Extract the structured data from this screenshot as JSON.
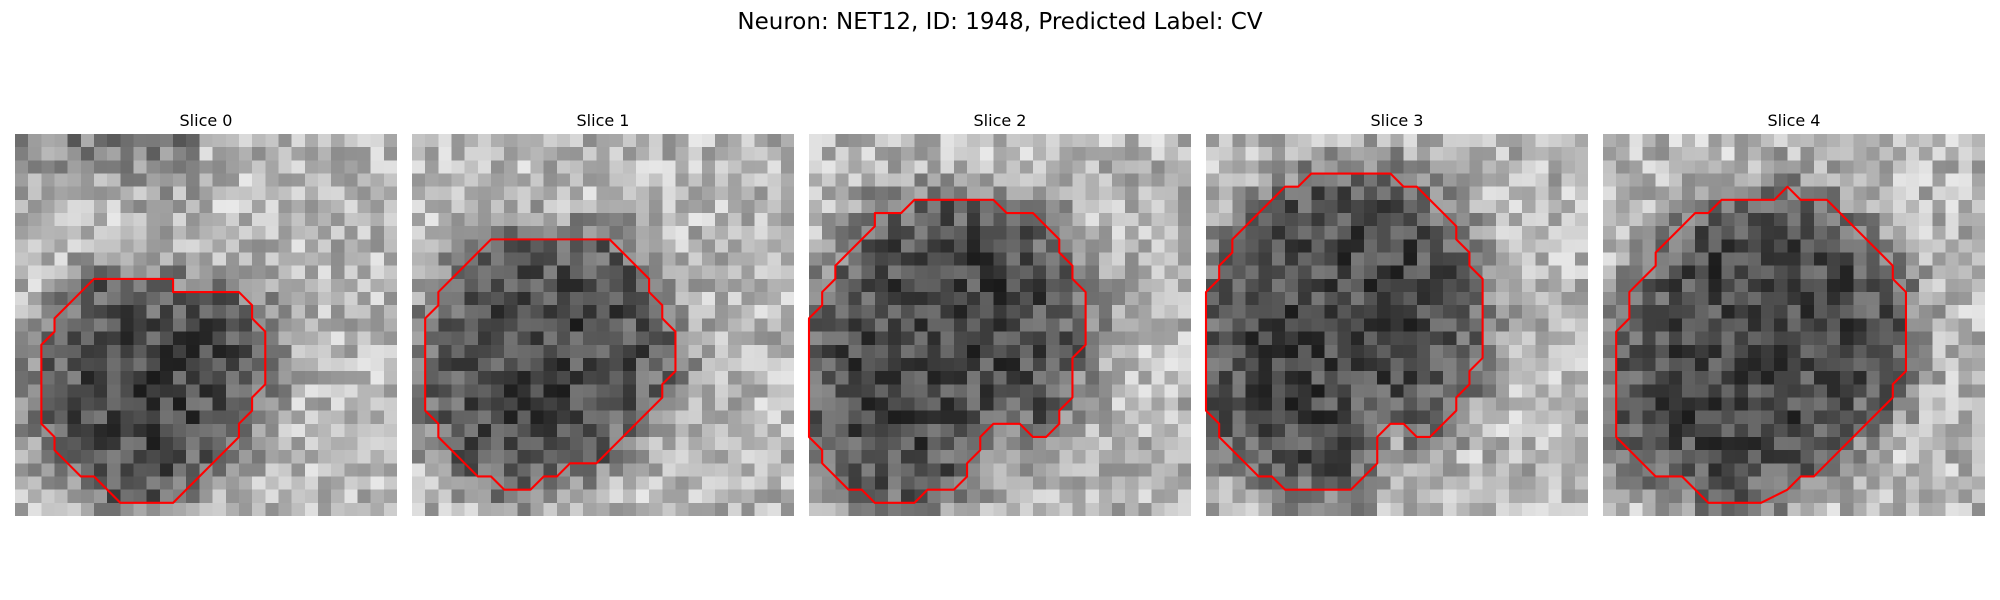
{
  "figure": {
    "title": "Neuron: NET12, ID: 1948, Predicted Label: CV",
    "outline_color": "#ff0000",
    "colormap": "gray"
  },
  "slices": [
    {
      "label": "Slice 0",
      "description": "small dark roundish cell in lower-middle area, bright background",
      "outline": [
        [
          12,
          12
        ],
        [
          17,
          12
        ],
        [
          18,
          13
        ],
        [
          18,
          14
        ],
        [
          19,
          15
        ],
        [
          19,
          16
        ],
        [
          19,
          17
        ],
        [
          19,
          18
        ],
        [
          19,
          19
        ],
        [
          18,
          20
        ],
        [
          18,
          21
        ],
        [
          17,
          22
        ],
        [
          17,
          23
        ],
        [
          16,
          24
        ],
        [
          15,
          25
        ],
        [
          14,
          26
        ],
        [
          13,
          27
        ],
        [
          12,
          28
        ],
        [
          10,
          28
        ],
        [
          8,
          28
        ],
        [
          7,
          27
        ],
        [
          6,
          26
        ],
        [
          5,
          26
        ],
        [
          4,
          25
        ],
        [
          3,
          24
        ],
        [
          3,
          23
        ],
        [
          2,
          22
        ],
        [
          2,
          21
        ],
        [
          2,
          20
        ],
        [
          2,
          19
        ],
        [
          2,
          18
        ],
        [
          2,
          17
        ],
        [
          2,
          16
        ],
        [
          3,
          15
        ],
        [
          3,
          14
        ],
        [
          4,
          13
        ],
        [
          5,
          12
        ],
        [
          6,
          11
        ],
        [
          7,
          11
        ],
        [
          12,
          11
        ]
      ]
    },
    {
      "label": "Slice 1",
      "description": "medium dark cell in center",
      "outline": [
        [
          6,
          8
        ],
        [
          9,
          8
        ],
        [
          14,
          8
        ],
        [
          15,
          8
        ],
        [
          16,
          9
        ],
        [
          17,
          10
        ],
        [
          18,
          11
        ],
        [
          18,
          12
        ],
        [
          19,
          13
        ],
        [
          19,
          14
        ],
        [
          20,
          15
        ],
        [
          20,
          16
        ],
        [
          20,
          17
        ],
        [
          20,
          18
        ],
        [
          19,
          19
        ],
        [
          19,
          20
        ],
        [
          18,
          21
        ],
        [
          17,
          22
        ],
        [
          16,
          23
        ],
        [
          15,
          24
        ],
        [
          14,
          25
        ],
        [
          12,
          25
        ],
        [
          11,
          26
        ],
        [
          10,
          26
        ],
        [
          9,
          27
        ],
        [
          7,
          27
        ],
        [
          6,
          26
        ],
        [
          5,
          26
        ],
        [
          4,
          25
        ],
        [
          3,
          24
        ],
        [
          2,
          23
        ],
        [
          2,
          22
        ],
        [
          1,
          21
        ],
        [
          1,
          20
        ],
        [
          1,
          19
        ],
        [
          1,
          18
        ],
        [
          1,
          17
        ],
        [
          1,
          16
        ],
        [
          1,
          15
        ],
        [
          1,
          14
        ],
        [
          2,
          13
        ],
        [
          2,
          12
        ],
        [
          3,
          11
        ],
        [
          4,
          10
        ],
        [
          5,
          9
        ],
        [
          6,
          8
        ]
      ]
    },
    {
      "label": "Slice 2",
      "description": "large dark textured cell filling most of panel",
      "outline": [
        [
          9,
          5
        ],
        [
          13,
          5
        ],
        [
          14,
          5
        ],
        [
          15,
          6
        ],
        [
          17,
          6
        ],
        [
          18,
          7
        ],
        [
          19,
          8
        ],
        [
          19,
          9
        ],
        [
          20,
          10
        ],
        [
          20,
          11
        ],
        [
          21,
          12
        ],
        [
          21,
          13
        ],
        [
          21,
          14
        ],
        [
          21,
          15
        ],
        [
          21,
          16
        ],
        [
          20,
          17
        ],
        [
          20,
          18
        ],
        [
          20,
          19
        ],
        [
          20,
          20
        ],
        [
          19,
          21
        ],
        [
          19,
          22
        ],
        [
          18,
          23
        ],
        [
          17,
          23
        ],
        [
          16,
          22
        ],
        [
          14,
          22
        ],
        [
          13,
          23
        ],
        [
          13,
          24
        ],
        [
          12,
          25
        ],
        [
          12,
          26
        ],
        [
          11,
          27
        ],
        [
          9,
          27
        ],
        [
          8,
          28
        ],
        [
          7,
          28
        ],
        [
          5,
          28
        ],
        [
          4,
          27
        ],
        [
          3,
          27
        ],
        [
          2,
          26
        ],
        [
          1,
          25
        ],
        [
          1,
          24
        ],
        [
          0,
          23
        ],
        [
          0,
          22
        ],
        [
          0,
          21
        ],
        [
          0,
          20
        ],
        [
          0,
          19
        ],
        [
          0,
          18
        ],
        [
          0,
          17
        ],
        [
          0,
          16
        ],
        [
          0,
          15
        ],
        [
          0,
          14
        ],
        [
          1,
          13
        ],
        [
          1,
          12
        ],
        [
          2,
          11
        ],
        [
          2,
          10
        ],
        [
          3,
          9
        ],
        [
          4,
          8
        ],
        [
          5,
          7
        ],
        [
          5,
          6
        ],
        [
          6,
          6
        ],
        [
          7,
          6
        ],
        [
          8,
          5
        ],
        [
          9,
          5
        ]
      ]
    },
    {
      "label": "Slice 3",
      "description": "largest dark textured cell, nearly octagonal",
      "outline": [
        [
          8,
          3
        ],
        [
          14,
          3
        ],
        [
          15,
          4
        ],
        [
          16,
          4
        ],
        [
          17,
          5
        ],
        [
          18,
          6
        ],
        [
          19,
          7
        ],
        [
          19,
          8
        ],
        [
          20,
          9
        ],
        [
          20,
          10
        ],
        [
          21,
          11
        ],
        [
          21,
          12
        ],
        [
          21,
          13
        ],
        [
          21,
          14
        ],
        [
          21,
          15
        ],
        [
          21,
          16
        ],
        [
          21,
          17
        ],
        [
          20,
          18
        ],
        [
          20,
          19
        ],
        [
          19,
          20
        ],
        [
          19,
          21
        ],
        [
          18,
          22
        ],
        [
          17,
          23
        ],
        [
          16,
          23
        ],
        [
          15,
          22
        ],
        [
          14,
          22
        ],
        [
          13,
          23
        ],
        [
          13,
          24
        ],
        [
          13,
          25
        ],
        [
          12,
          26
        ],
        [
          11,
          27
        ],
        [
          9,
          27
        ],
        [
          6,
          27
        ],
        [
          5,
          26
        ],
        [
          4,
          26
        ],
        [
          3,
          25
        ],
        [
          2,
          24
        ],
        [
          1,
          23
        ],
        [
          1,
          22
        ],
        [
          0,
          21
        ],
        [
          0,
          20
        ],
        [
          0,
          19
        ],
        [
          0,
          18
        ],
        [
          0,
          17
        ],
        [
          0,
          16
        ],
        [
          0,
          15
        ],
        [
          0,
          14
        ],
        [
          0,
          13
        ],
        [
          0,
          12
        ],
        [
          1,
          11
        ],
        [
          1,
          10
        ],
        [
          2,
          9
        ],
        [
          2,
          8
        ],
        [
          3,
          7
        ],
        [
          4,
          6
        ],
        [
          5,
          5
        ],
        [
          6,
          4
        ],
        [
          7,
          4
        ],
        [
          8,
          3
        ]
      ]
    },
    {
      "label": "Slice 4",
      "description": "large dark cell, slightly smaller than slice 3",
      "outline": [
        [
          9,
          5
        ],
        [
          13,
          5
        ],
        [
          14,
          4
        ],
        [
          15,
          5
        ],
        [
          17,
          5
        ],
        [
          18,
          6
        ],
        [
          19,
          7
        ],
        [
          20,
          8
        ],
        [
          21,
          9
        ],
        [
          22,
          10
        ],
        [
          22,
          11
        ],
        [
          23,
          12
        ],
        [
          23,
          13
        ],
        [
          23,
          14
        ],
        [
          23,
          15
        ],
        [
          23,
          16
        ],
        [
          23,
          17
        ],
        [
          23,
          18
        ],
        [
          22,
          19
        ],
        [
          22,
          20
        ],
        [
          21,
          21
        ],
        [
          20,
          22
        ],
        [
          19,
          23
        ],
        [
          18,
          24
        ],
        [
          17,
          25
        ],
        [
          16,
          26
        ],
        [
          15,
          26
        ],
        [
          14,
          27
        ],
        [
          12,
          28
        ],
        [
          10,
          28
        ],
        [
          8,
          28
        ],
        [
          7,
          27
        ],
        [
          6,
          26
        ],
        [
          5,
          26
        ],
        [
          4,
          26
        ],
        [
          3,
          25
        ],
        [
          2,
          24
        ],
        [
          1,
          23
        ],
        [
          1,
          22
        ],
        [
          1,
          21
        ],
        [
          1,
          20
        ],
        [
          1,
          19
        ],
        [
          1,
          18
        ],
        [
          1,
          17
        ],
        [
          1,
          16
        ],
        [
          1,
          15
        ],
        [
          2,
          14
        ],
        [
          2,
          13
        ],
        [
          2,
          12
        ],
        [
          3,
          11
        ],
        [
          4,
          10
        ],
        [
          4,
          9
        ],
        [
          5,
          8
        ],
        [
          6,
          7
        ],
        [
          7,
          6
        ],
        [
          8,
          6
        ],
        [
          9,
          5
        ]
      ]
    }
  ]
}
